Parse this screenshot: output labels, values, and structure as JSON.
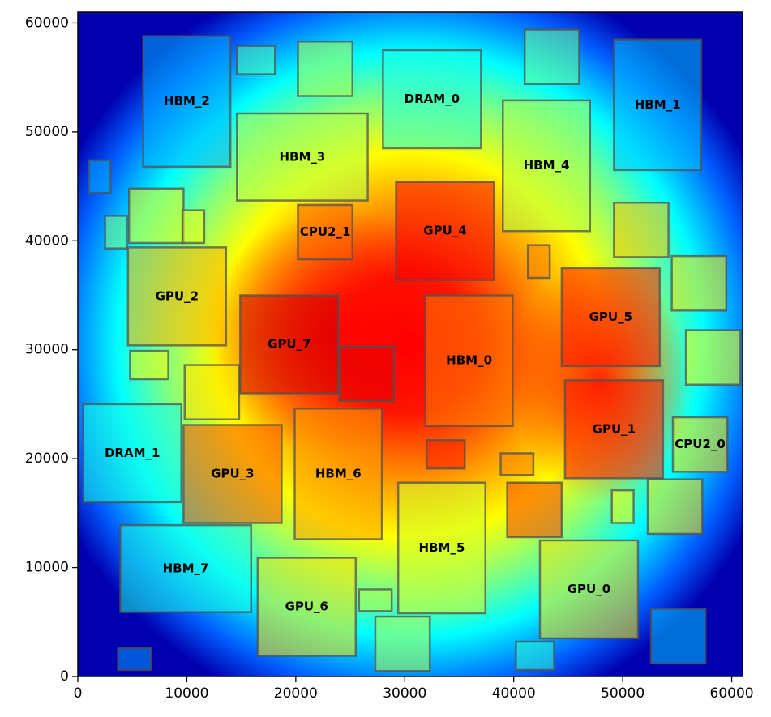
{
  "chart_data": {
    "type": "heatmap",
    "title": "",
    "xlabel": "",
    "ylabel": "",
    "xlim": [
      0,
      61000
    ],
    "ylim": [
      0,
      61000
    ],
    "x_ticks": [
      0,
      10000,
      20000,
      30000,
      40000,
      50000,
      60000
    ],
    "y_ticks": [
      0,
      10000,
      20000,
      30000,
      40000,
      50000,
      60000
    ],
    "x_tick_labels": [
      "0",
      "10000",
      "20000",
      "30000",
      "40000",
      "50000",
      "60000"
    ],
    "y_tick_labels": [
      "0",
      "10000",
      "20000",
      "30000",
      "40000",
      "50000",
      "60000"
    ],
    "colormap": "jet",
    "grid": false,
    "blocks": [
      {
        "label": "HBM_2",
        "x": 6000,
        "y": 46800,
        "w": 8000,
        "h": 12000,
        "heat": 0.3
      },
      {
        "label": "",
        "x": 14600,
        "y": 55300,
        "w": 3500,
        "h": 2600,
        "heat": 0.45
      },
      {
        "label": "",
        "x": 20200,
        "y": 53300,
        "w": 5000,
        "h": 5000,
        "heat": 0.55
      },
      {
        "label": "DRAM_0",
        "x": 28000,
        "y": 48500,
        "w": 9000,
        "h": 9000,
        "heat": 0.4
      },
      {
        "label": "",
        "x": 41000,
        "y": 54400,
        "w": 5000,
        "h": 5000,
        "heat": 0.48
      },
      {
        "label": "HBM_1",
        "x": 49200,
        "y": 46500,
        "w": 8000,
        "h": 12000,
        "heat": 0.32
      },
      {
        "label": "",
        "x": 1000,
        "y": 44400,
        "w": 2000,
        "h": 3000,
        "heat": 0.3
      },
      {
        "label": "HBM_3",
        "x": 14600,
        "y": 43700,
        "w": 12000,
        "h": 8000,
        "heat": 0.55
      },
      {
        "label": "HBM_4",
        "x": 39000,
        "y": 40900,
        "w": 8000,
        "h": 12000,
        "heat": 0.55
      },
      {
        "label": "",
        "x": 4700,
        "y": 39800,
        "w": 5000,
        "h": 5000,
        "heat": 0.62
      },
      {
        "label": "",
        "x": 2500,
        "y": 39300,
        "w": 2000,
        "h": 3000,
        "heat": 0.5
      },
      {
        "label": "",
        "x": 9600,
        "y": 39800,
        "w": 2000,
        "h": 3000,
        "heat": 0.62
      },
      {
        "label": "CPU2_1",
        "x": 20200,
        "y": 38300,
        "w": 5000,
        "h": 5000,
        "heat": 0.78
      },
      {
        "label": "GPU_4",
        "x": 29200,
        "y": 36400,
        "w": 9000,
        "h": 9000,
        "heat": 0.88
      },
      {
        "label": "",
        "x": 49200,
        "y": 38500,
        "w": 5000,
        "h": 5000,
        "heat": 0.68
      },
      {
        "label": "",
        "x": 41300,
        "y": 36600,
        "w": 2000,
        "h": 3000,
        "heat": 0.75
      },
      {
        "label": "GPU_2",
        "x": 4600,
        "y": 30400,
        "w": 9000,
        "h": 9000,
        "heat": 0.7
      },
      {
        "label": "",
        "x": 54500,
        "y": 33600,
        "w": 5000,
        "h": 5000,
        "heat": 0.65
      },
      {
        "label": "GPU_5",
        "x": 44400,
        "y": 28500,
        "w": 9000,
        "h": 9000,
        "heat": 0.85
      },
      {
        "label": "GPU_7",
        "x": 14900,
        "y": 26000,
        "w": 9000,
        "h": 9000,
        "heat": 0.92
      },
      {
        "label": "",
        "x": 24000,
        "y": 25300,
        "w": 5000,
        "h": 5000,
        "heat": 0.9
      },
      {
        "label": "HBM_0",
        "x": 31900,
        "y": 23000,
        "w": 8000,
        "h": 12000,
        "heat": 0.75
      },
      {
        "label": "",
        "x": 4800,
        "y": 27300,
        "w": 3500,
        "h": 2600,
        "heat": 0.62
      },
      {
        "label": "",
        "x": 55800,
        "y": 26800,
        "w": 5000,
        "h": 5000,
        "heat": 0.62
      },
      {
        "label": "",
        "x": 9800,
        "y": 23600,
        "w": 5000,
        "h": 5000,
        "heat": 0.65
      },
      {
        "label": "GPU_1",
        "x": 44700,
        "y": 18200,
        "w": 9000,
        "h": 9000,
        "heat": 0.85
      },
      {
        "label": "DRAM_1",
        "x": 500,
        "y": 16000,
        "w": 9000,
        "h": 9000,
        "heat": 0.4
      },
      {
        "label": "GPU_3",
        "x": 9700,
        "y": 14100,
        "w": 9000,
        "h": 9000,
        "heat": 0.8
      },
      {
        "label": "HBM_6",
        "x": 19900,
        "y": 12600,
        "w": 8000,
        "h": 12000,
        "heat": 0.72
      },
      {
        "label": "CPU2_0",
        "x": 54600,
        "y": 18800,
        "w": 5000,
        "h": 5000,
        "heat": 0.65
      },
      {
        "label": "",
        "x": 32000,
        "y": 19100,
        "w": 3500,
        "h": 2600,
        "heat": 0.85
      },
      {
        "label": "",
        "x": 38800,
        "y": 18500,
        "w": 3000,
        "h": 2000,
        "heat": 0.75
      },
      {
        "label": "HBM_5",
        "x": 29400,
        "y": 5800,
        "w": 8000,
        "h": 12000,
        "heat": 0.58
      },
      {
        "label": "",
        "x": 39400,
        "y": 12800,
        "w": 5000,
        "h": 5000,
        "heat": 0.82
      },
      {
        "label": "",
        "x": 52300,
        "y": 13100,
        "w": 5000,
        "h": 5000,
        "heat": 0.65
      },
      {
        "label": "",
        "x": 49000,
        "y": 14100,
        "w": 2000,
        "h": 3000,
        "heat": 0.62
      },
      {
        "label": "HBM_7",
        "x": 3900,
        "y": 5900,
        "w": 12000,
        "h": 8000,
        "heat": 0.4
      },
      {
        "label": "GPU_0",
        "x": 42400,
        "y": 3500,
        "w": 9000,
        "h": 9000,
        "heat": 0.65
      },
      {
        "label": "GPU_6",
        "x": 16500,
        "y": 1900,
        "w": 9000,
        "h": 9000,
        "heat": 0.65
      },
      {
        "label": "",
        "x": 25800,
        "y": 6000,
        "w": 3000,
        "h": 2000,
        "heat": 0.55
      },
      {
        "label": "",
        "x": 27300,
        "y": 500,
        "w": 5000,
        "h": 5000,
        "heat": 0.55
      },
      {
        "label": "",
        "x": 40200,
        "y": 600,
        "w": 3500,
        "h": 2600,
        "heat": 0.42
      },
      {
        "label": "",
        "x": 52600,
        "y": 1200,
        "w": 5000,
        "h": 5000,
        "heat": 0.32
      },
      {
        "label": "",
        "x": 3700,
        "y": 600,
        "w": 3000,
        "h": 2000,
        "heat": 0.28
      }
    ]
  }
}
